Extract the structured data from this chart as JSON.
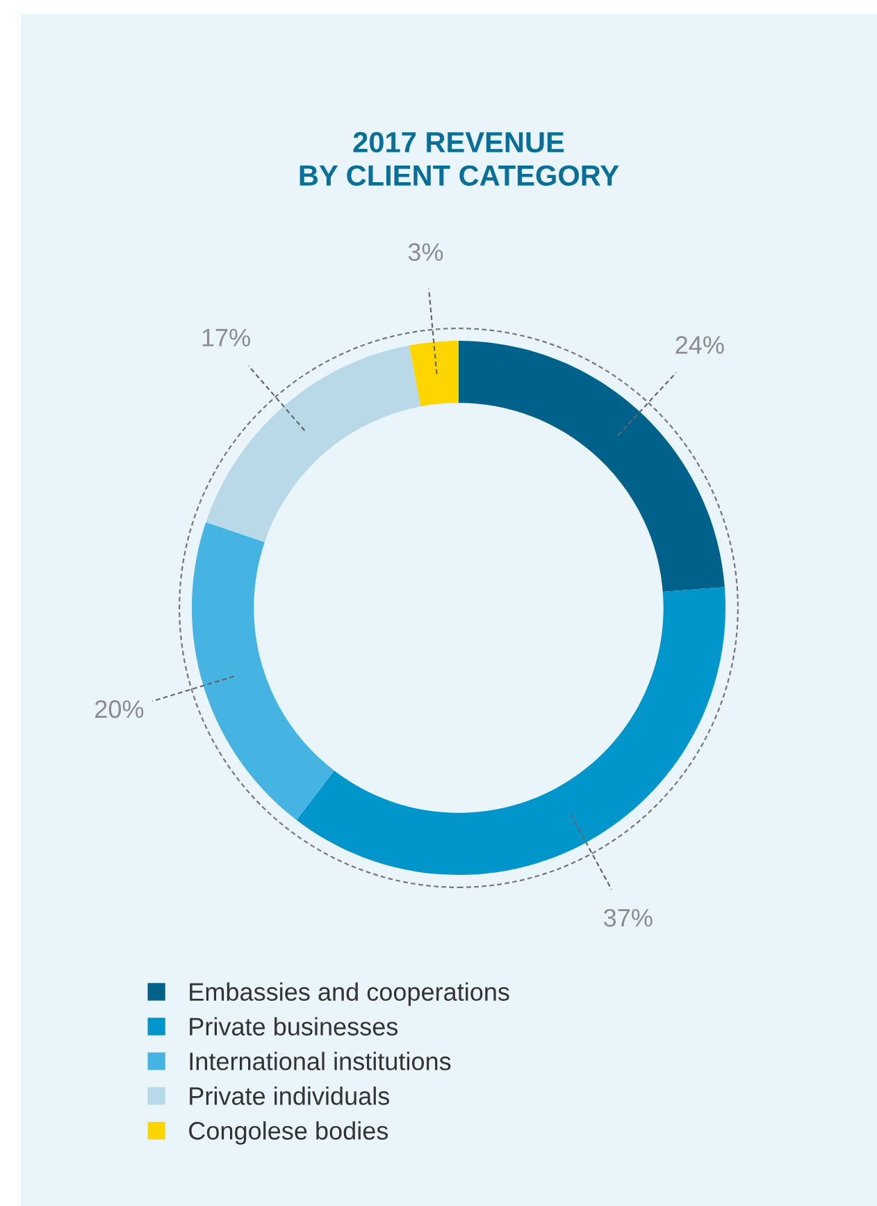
{
  "chart_data": {
    "type": "donut",
    "title": "2017 REVENUE\nBY CLIENT CATEGORY",
    "categories": [
      "Embassies and cooperations",
      "Private businesses",
      "International institutions",
      "Private individuals",
      "Congolese bodies"
    ],
    "values": [
      24,
      37,
      20,
      17,
      3
    ],
    "colors": [
      "#00628a",
      "#0096cc",
      "#45b4e3",
      "#b9d9e9",
      "#ffd500"
    ],
    "value_labels": [
      "24%",
      "37%",
      "20%",
      "17%",
      "3%"
    ],
    "legend": "bottom left"
  }
}
